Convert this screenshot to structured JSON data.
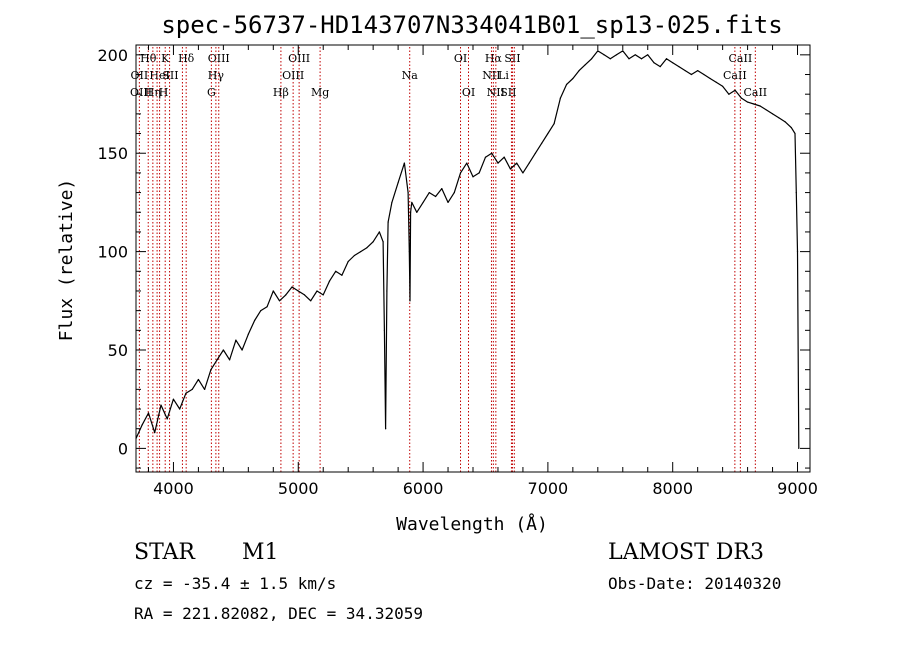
{
  "chart_data": {
    "type": "line",
    "title": "spec-56737-HD143707N334041B01_sp13-025.fits",
    "xlabel": "Wavelength (Å)",
    "ylabel": "Flux (relative)",
    "xlim": [
      3700,
      9100
    ],
    "ylim": [
      -12,
      205
    ],
    "xticks": [
      4000,
      5000,
      6000,
      7000,
      8000,
      9000
    ],
    "xtick_labels": [
      "4000",
      "5000",
      "6000",
      "7000",
      "8000",
      "9000"
    ],
    "yticks": [
      0,
      50,
      100,
      150,
      200
    ],
    "ytick_labels": [
      "0",
      "50",
      "100",
      "150",
      "200"
    ],
    "grid": false,
    "series": [
      {
        "x": [
          3700,
          3750,
          3800,
          3850,
          3900,
          3950,
          4000,
          4050,
          4100,
          4150,
          4200,
          4250,
          4300,
          4350,
          4400,
          4450,
          4500,
          4550,
          4600,
          4650,
          4700,
          4750,
          4800,
          4850,
          4900,
          4950,
          5000,
          5050,
          5100,
          5150,
          5200,
          5250,
          5300,
          5350,
          5400,
          5450,
          5500,
          5550,
          5600,
          5650,
          5680,
          5690,
          5700,
          5710,
          5720,
          5750,
          5800,
          5850,
          5880,
          5890,
          5895,
          5900,
          5910,
          5950,
          6000,
          6050,
          6100,
          6150,
          6200,
          6250,
          6300,
          6350,
          6400,
          6450,
          6500,
          6550,
          6600,
          6650,
          6700,
          6750,
          6800,
          6850,
          6900,
          6950,
          7000,
          7050,
          7100,
          7150,
          7200,
          7250,
          7300,
          7350,
          7400,
          7450,
          7500,
          7550,
          7600,
          7650,
          7700,
          7750,
          7800,
          7850,
          7900,
          7950,
          8000,
          8050,
          8100,
          8150,
          8200,
          8250,
          8300,
          8350,
          8400,
          8450,
          8500,
          8550,
          8600,
          8650,
          8700,
          8750,
          8800,
          8850,
          8900,
          8950,
          8980,
          8990,
          9000,
          9010
        ],
        "y": [
          5,
          12,
          18,
          8,
          22,
          15,
          25,
          20,
          28,
          30,
          35,
          30,
          40,
          45,
          50,
          45,
          55,
          50,
          58,
          65,
          70,
          72,
          80,
          75,
          78,
          82,
          80,
          78,
          75,
          80,
          78,
          85,
          90,
          88,
          95,
          98,
          100,
          102,
          105,
          110,
          105,
          60,
          10,
          80,
          115,
          125,
          135,
          145,
          130,
          100,
          75,
          120,
          125,
          120,
          125,
          130,
          128,
          132,
          125,
          130,
          140,
          145,
          138,
          140,
          148,
          150,
          145,
          148,
          142,
          145,
          140,
          145,
          150,
          155,
          160,
          165,
          178,
          185,
          188,
          192,
          195,
          198,
          202,
          200,
          198,
          200,
          202,
          198,
          200,
          198,
          200,
          196,
          194,
          198,
          196,
          194,
          192,
          190,
          192,
          190,
          188,
          186,
          184,
          180,
          182,
          178,
          176,
          175,
          174,
          172,
          170,
          168,
          166,
          163,
          160,
          130,
          100,
          0
        ]
      }
    ],
    "line_markers": [
      {
        "label": "Hθ",
        "wavelength": 3798,
        "row": 0,
        "dx": 0
      },
      {
        "label": "K",
        "wavelength": 3934,
        "row": 0,
        "dx": 0
      },
      {
        "label": "Hδ",
        "wavelength": 4102,
        "row": 0,
        "dx": 0
      },
      {
        "label": "OII",
        "wavelength": 3727,
        "row": 1,
        "dx": 0
      },
      {
        "label": "HeI",
        "wavelength": 3889,
        "row": 1,
        "dx": 0
      },
      {
        "label": "SII",
        "wavelength": 4072,
        "row": 1,
        "dx": -12
      },
      {
        "label": "OIII",
        "wavelength": 3869,
        "row": 2,
        "dx": -16
      },
      {
        "label": "Hη",
        "wavelength": 3835,
        "row": 2,
        "dx": 0
      },
      {
        "label": "H",
        "wavelength": 3969,
        "row": 2,
        "dx": -6
      },
      {
        "label": "OIII",
        "wavelength": 4363,
        "row": 0,
        "dx": 0
      },
      {
        "label": "Hγ",
        "wavelength": 4340,
        "row": 1,
        "dx": 0
      },
      {
        "label": "G",
        "wavelength": 4304,
        "row": 2,
        "dx": 0
      },
      {
        "label": "OIII",
        "wavelength": 5007,
        "row": 0,
        "dx": 0
      },
      {
        "label": "OIII",
        "wavelength": 4959,
        "row": 1,
        "dx": 0
      },
      {
        "label": "Hβ",
        "wavelength": 4861,
        "row": 2,
        "dx": 0
      },
      {
        "label": "Mg",
        "wavelength": 5175,
        "row": 2,
        "dx": 0
      },
      {
        "label": "Na",
        "wavelength": 5893,
        "row": 1,
        "dx": 0
      },
      {
        "label": "OI",
        "wavelength": 6300,
        "row": 0,
        "dx": 0
      },
      {
        "label": "OI",
        "wavelength": 6364,
        "row": 2,
        "dx": 0
      },
      {
        "label": "Hα",
        "wavelength": 6563,
        "row": 0,
        "dx": 0
      },
      {
        "label": "SII",
        "wavelength": 6716,
        "row": 0,
        "dx": 0
      },
      {
        "label": "NII",
        "wavelength": 6548,
        "row": 1,
        "dx": 0
      },
      {
        "label": "Li",
        "wavelength": 6708,
        "row": 1,
        "dx": -8
      },
      {
        "label": "NII",
        "wavelength": 6583,
        "row": 2,
        "dx": 0
      },
      {
        "label": "SII",
        "wavelength": 6731,
        "row": 2,
        "dx": -6
      },
      {
        "label": "CaII",
        "wavelength": 8542,
        "row": 0,
        "dx": 0
      },
      {
        "label": "CaII",
        "wavelength": 8498,
        "row": 1,
        "dx": 0
      },
      {
        "label": "CaII",
        "wavelength": 8662,
        "row": 2,
        "dx": 0
      }
    ],
    "marker_color": "#c00000"
  },
  "info": {
    "object_type": "STAR",
    "subclass": "M1",
    "survey": "LAMOST DR3",
    "cz": "cz = -35.4 ± 1.5 km/s",
    "obs_date": "Obs-Date: 20140320",
    "radec": "RA = 221.82082, DEC =  34.32059"
  }
}
